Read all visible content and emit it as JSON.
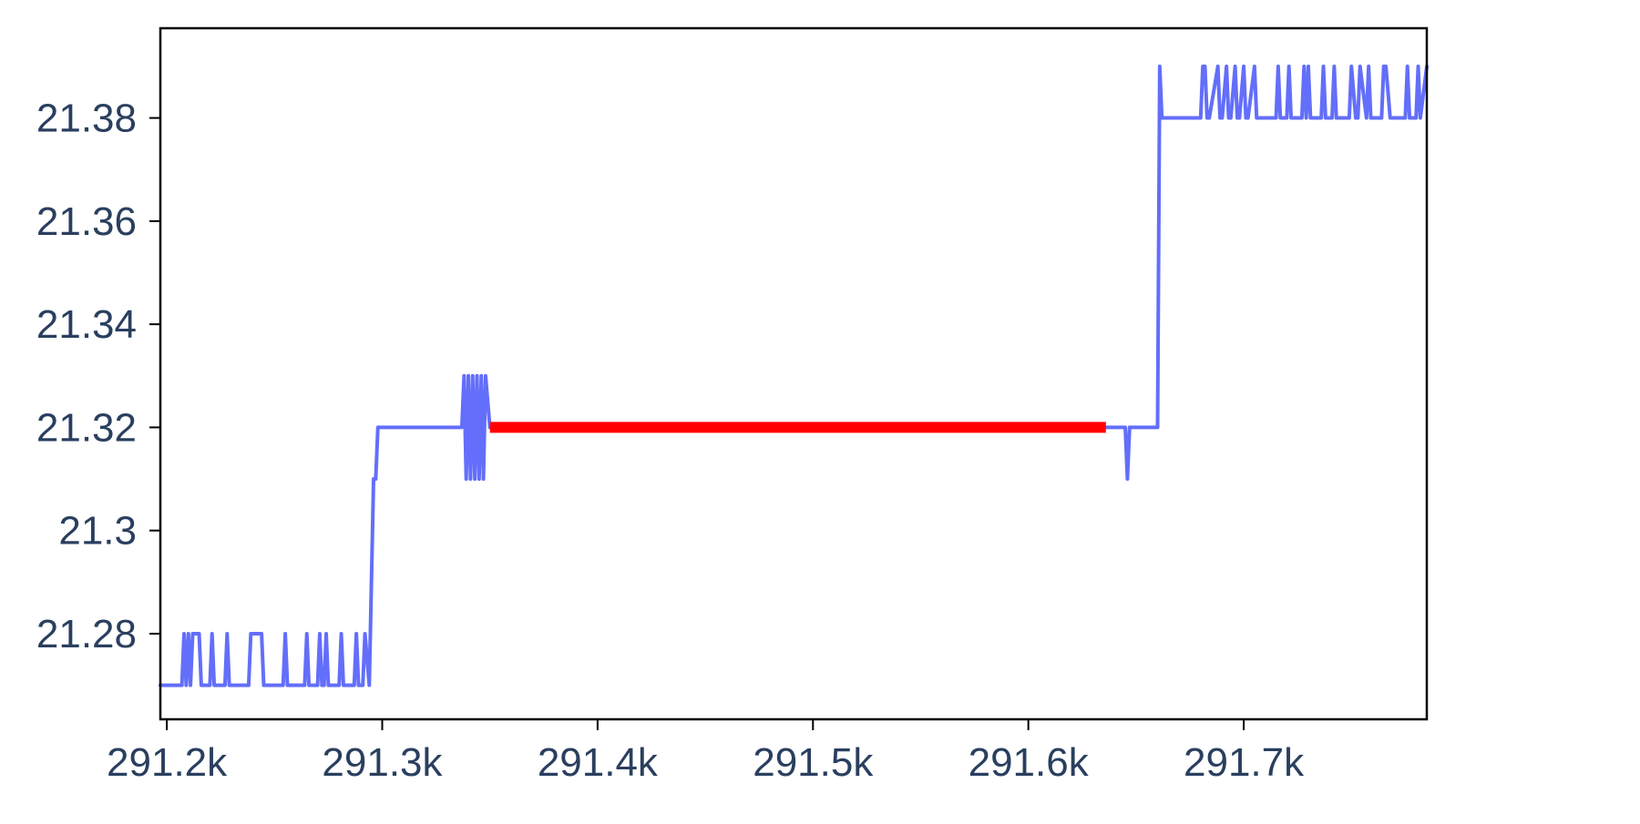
{
  "chart_data": {
    "type": "line",
    "title": "",
    "xlabel": "",
    "ylabel": "",
    "xlim": [
      291197,
      291785
    ],
    "ylim": [
      21.2634,
      21.3974
    ],
    "x_ticks": [
      291200,
      291300,
      291400,
      291500,
      291600,
      291700
    ],
    "x_tick_labels": [
      "291.2k",
      "291.3k",
      "291.4k",
      "291.5k",
      "291.6k",
      "291.7k"
    ],
    "y_ticks": [
      21.28,
      21.3,
      21.32,
      21.34,
      21.36,
      21.38
    ],
    "y_tick_labels": [
      "21.28",
      "21.3",
      "21.32",
      "21.34",
      "21.36",
      "21.38"
    ],
    "grid": false,
    "legend": "none",
    "colors": {
      "series": "#636efa",
      "highlight": "#ff0000",
      "axis": "#000000",
      "tick_text": "#2a3f5f"
    },
    "series": [
      {
        "color": "#636efa",
        "x": [
          291197,
          291207,
          291208,
          291209,
          291210,
          291211,
          291212,
          291213,
          291214,
          291215,
          291216,
          291220,
          291221,
          291222,
          291227,
          291228,
          291229,
          291238,
          291239,
          291240,
          291244,
          291245,
          291254,
          291255,
          291256,
          291264,
          291265,
          291266,
          291270,
          291271,
          291272,
          291273,
          291274,
          291275,
          291280,
          291281,
          291282,
          291287,
          291288,
          291289,
          291290,
          291291,
          291292,
          291294,
          291296,
          291297,
          291298,
          291299,
          291300,
          291301,
          291320,
          291337,
          291338,
          291339,
          291340,
          291341,
          291342,
          291343,
          291344,
          291345,
          291346,
          291347,
          291348,
          291350,
          291633,
          291645,
          291646,
          291647,
          291648,
          291649,
          291660,
          291661,
          291662,
          291680,
          291681,
          291682,
          291683,
          291684,
          291688,
          291689,
          291690,
          291692,
          291693,
          291694,
          291696,
          291697,
          291698,
          291700,
          291701,
          291702,
          291705,
          291706,
          291707,
          291715,
          291716,
          291717,
          291720,
          291721,
          291722,
          291726,
          291727,
          291728,
          291729,
          291730,
          291731,
          291732,
          291736,
          291737,
          291738,
          291741,
          291742,
          291743,
          291748,
          291749,
          291750,
          291752,
          291753,
          291754,
          291757,
          291758,
          291759,
          291763,
          291764,
          291765,
          291766,
          291768,
          291769,
          291770,
          291775,
          291776,
          291777,
          291780,
          291781,
          291782,
          291785
        ],
        "y": [
          21.27,
          21.27,
          21.28,
          21.27,
          21.28,
          21.27,
          21.28,
          21.28,
          21.28,
          21.28,
          21.27,
          21.27,
          21.28,
          21.27,
          21.27,
          21.28,
          21.27,
          21.27,
          21.28,
          21.28,
          21.28,
          21.27,
          21.27,
          21.28,
          21.27,
          21.27,
          21.28,
          21.27,
          21.27,
          21.28,
          21.27,
          21.27,
          21.28,
          21.27,
          21.27,
          21.28,
          21.27,
          21.27,
          21.28,
          21.27,
          21.27,
          21.27,
          21.28,
          21.27,
          21.31,
          21.31,
          21.32,
          21.32,
          21.32,
          21.32,
          21.32,
          21.32,
          21.33,
          21.31,
          21.33,
          21.31,
          21.33,
          21.31,
          21.33,
          21.31,
          21.33,
          21.31,
          21.33,
          21.32,
          21.32,
          21.32,
          21.31,
          21.32,
          21.32,
          21.32,
          21.32,
          21.39,
          21.38,
          21.38,
          21.39,
          21.39,
          21.38,
          21.38,
          21.39,
          21.38,
          21.38,
          21.39,
          21.38,
          21.38,
          21.39,
          21.38,
          21.38,
          21.39,
          21.38,
          21.38,
          21.39,
          21.38,
          21.38,
          21.38,
          21.39,
          21.38,
          21.38,
          21.39,
          21.38,
          21.38,
          21.38,
          21.39,
          21.38,
          21.39,
          21.38,
          21.38,
          21.38,
          21.39,
          21.38,
          21.38,
          21.39,
          21.38,
          21.38,
          21.38,
          21.39,
          21.38,
          21.38,
          21.39,
          21.38,
          21.39,
          21.38,
          21.38,
          21.38,
          21.39,
          21.39,
          21.38,
          21.38,
          21.38,
          21.38,
          21.39,
          21.38,
          21.38,
          21.39,
          21.38,
          21.39
        ]
      },
      {
        "color": "#ff0000",
        "x": [
          291350,
          291636
        ],
        "y": [
          21.32,
          21.32
        ]
      }
    ]
  }
}
